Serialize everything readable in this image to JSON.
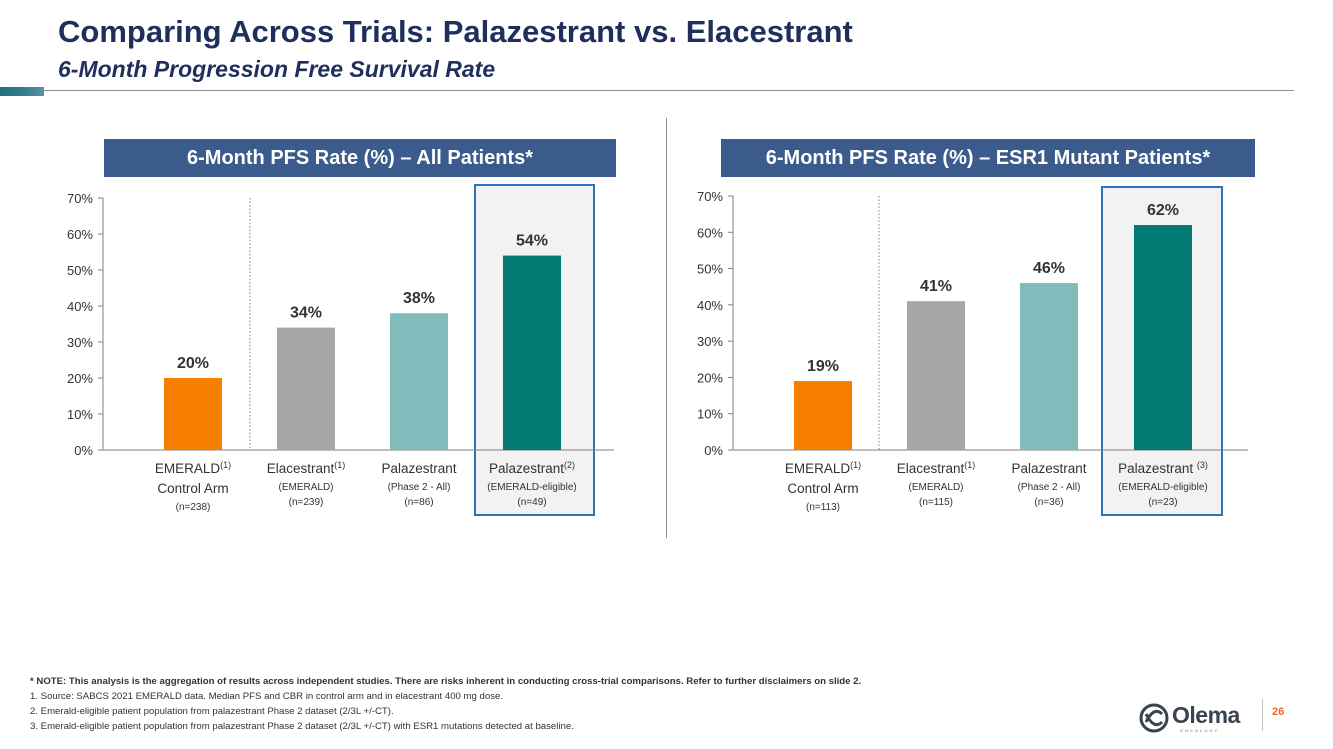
{
  "slide": {
    "title": "Comparing Across Trials: Palazestrant vs. Elacestrant",
    "subtitle": "6-Month Progression Free Survival Rate",
    "page_number": "26",
    "logo_text": "Olema",
    "logo_subtext": "ONCOLOGY"
  },
  "footnotes": {
    "note": "* NOTE: This analysis is the aggregation of results across independent studies.  There are risks inherent in conducting cross-trial comparisons. Refer to further disclaimers on slide 2.",
    "items": [
      "1. Source: SABCS 2021 EMERALD data.  Median PFS and CBR in control arm and in elacestrant 400 mg dose.",
      "2. Emerald-eligible patient population from palazestrant Phase 2 dataset (2/3L +/-CT).",
      "3. Emerald-eligible patient population from palazestrant Phase 2 dataset (2/3L +/-CT) with ESR1 mutations detected at baseline."
    ]
  },
  "chart_data": [
    {
      "type": "bar",
      "title": "6-Month PFS Rate (%) – All Patients*",
      "ylim": [
        0,
        70
      ],
      "yticks": [
        "0%",
        "10%",
        "20%",
        "30%",
        "40%",
        "50%",
        "60%",
        "70%"
      ],
      "categories": [
        {
          "name": "EMERALD",
          "sup": "(1)",
          "line2": "Control Arm",
          "line3": "(n=238)"
        },
        {
          "name": "Elacestrant",
          "sup": "(1)",
          "line2": "(EMERALD)",
          "line3": "(n=239)"
        },
        {
          "name": "Palazestrant",
          "sup": "",
          "line2": "(Phase 2 - All)",
          "line3": "(n=86)"
        },
        {
          "name": "Palazestrant",
          "sup": "(2)",
          "line2": "(EMERALD-eligible)",
          "line3": "(n=49)"
        }
      ],
      "values": [
        20,
        34,
        38,
        54
      ],
      "data_labels": [
        "20%",
        "34%",
        "38%",
        "54%"
      ],
      "colors": [
        "#f77f00",
        "#a6a6a6",
        "#7fbcbb",
        "#007a73"
      ],
      "highlighted_index": 3,
      "grid": false
    },
    {
      "type": "bar",
      "title": "6-Month PFS Rate (%) – ESR1 Mutant Patients*",
      "ylim": [
        0,
        70
      ],
      "yticks": [
        "0%",
        "10%",
        "20%",
        "30%",
        "40%",
        "50%",
        "60%",
        "70%"
      ],
      "categories": [
        {
          "name": "EMERALD",
          "sup": "(1)",
          "line2": "Control Arm",
          "line3": "(n=113)"
        },
        {
          "name": "Elacestrant",
          "sup": "(1)",
          "line2": "(EMERALD)",
          "line3": "(n=115)"
        },
        {
          "name": "Palazestrant",
          "sup": "",
          "line2": "(Phase 2 - All)",
          "line3": "(n=36)"
        },
        {
          "name": "Palazestrant ",
          "sup": "(3)",
          "line2": "(EMERALD-eligible)",
          "line3": "(n=23)"
        }
      ],
      "values": [
        19,
        41,
        46,
        62
      ],
      "data_labels": [
        "19%",
        "41%",
        "46%",
        "62%"
      ],
      "colors": [
        "#f77f00",
        "#a6a6a6",
        "#7fbcbb",
        "#007a73"
      ],
      "highlighted_index": 3,
      "grid": false
    }
  ]
}
